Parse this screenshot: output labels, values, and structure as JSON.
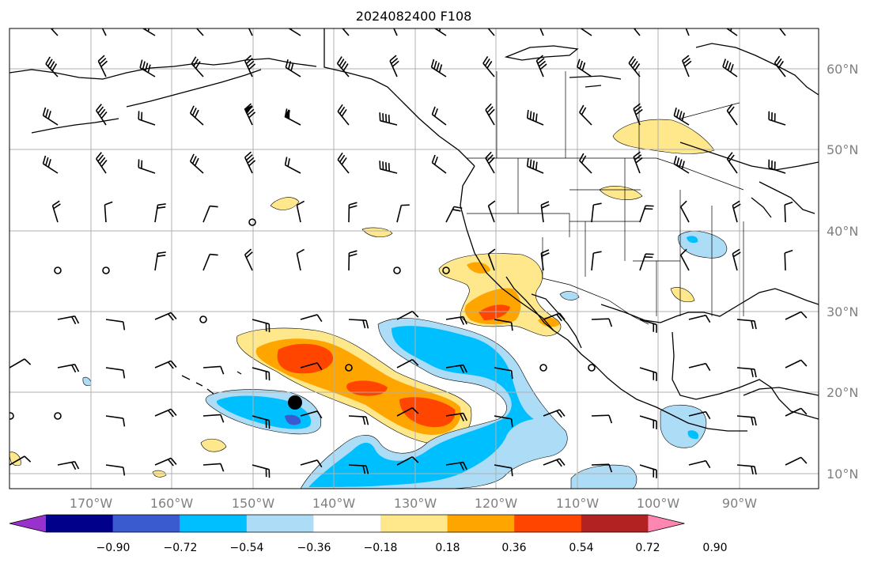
{
  "title": "2024082400 F108",
  "map": {
    "lat_labels": [
      "60°N",
      "50°N",
      "40°N",
      "30°N",
      "20°N",
      "10°N"
    ],
    "lon_labels": [
      "170°W",
      "160°W",
      "150°W",
      "140°W",
      "130°W",
      "120°W",
      "110°W",
      "100°W",
      "90°W"
    ],
    "lat_values": [
      60,
      50,
      40,
      30,
      20,
      10
    ],
    "lon_values": [
      -170,
      -160,
      -150,
      -140,
      -130,
      -120,
      -110,
      -100,
      -90
    ],
    "gridlines": true,
    "marker": {
      "name": "storm-center",
      "lon": -145,
      "lat": 18.7
    }
  },
  "colorbar": {
    "ticks": [
      "−0.90",
      "−0.72",
      "−0.54",
      "−0.36",
      "−0.18",
      "0.18",
      "0.36",
      "0.54",
      "0.72",
      "0.90"
    ],
    "colors": [
      "#9932CC",
      "#00008B",
      "#3A5BD0",
      "#00BFFF",
      "#ADDCF7",
      "#FFFFFF",
      "#FFE88C",
      "#FFA500",
      "#FF4500",
      "#B22222",
      "#FF86B0"
    ],
    "extend": "both"
  }
}
